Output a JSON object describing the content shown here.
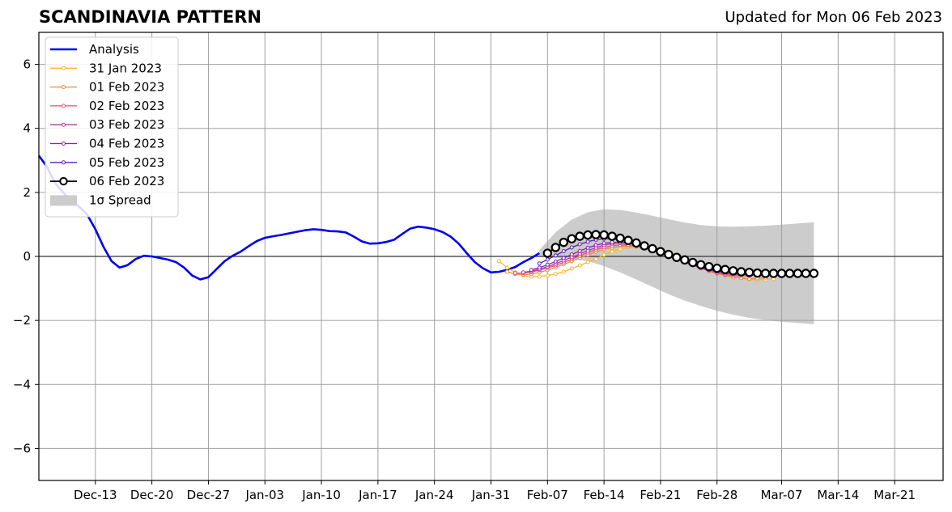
{
  "chart_data": {
    "type": "line",
    "title": "SCANDINAVIA PATTERN",
    "subtitle": "Updated for Mon 06 Feb 2023",
    "xlabel": "",
    "ylabel": "",
    "ylim": [
      -7,
      7
    ],
    "xlim": [
      "2023-12-06",
      "2024-03-27"
    ],
    "x_ticks": [
      {
        "date": "2023-12-13",
        "label": "Dec-13"
      },
      {
        "date": "2023-12-20",
        "label": "Dec-20"
      },
      {
        "date": "2023-12-27",
        "label": "Dec-27"
      },
      {
        "date": "2024-01-03",
        "label": "Jan-03"
      },
      {
        "date": "2024-01-10",
        "label": "Jan-10"
      },
      {
        "date": "2024-01-17",
        "label": "Jan-17"
      },
      {
        "date": "2024-01-24",
        "label": "Jan-24"
      },
      {
        "date": "2024-01-31",
        "label": "Jan-31"
      },
      {
        "date": "2024-02-07",
        "label": "Feb-07"
      },
      {
        "date": "2024-02-14",
        "label": "Feb-14"
      },
      {
        "date": "2024-02-21",
        "label": "Feb-21"
      },
      {
        "date": "2024-02-28",
        "label": "Feb-28"
      },
      {
        "date": "2024-03-07",
        "label": "Mar-07"
      },
      {
        "date": "2024-03-14",
        "label": "Mar-14"
      },
      {
        "date": "2024-03-21",
        "label": "Mar-21"
      }
    ],
    "y_ticks": [
      {
        "value": 6,
        "label": "6"
      },
      {
        "value": 4,
        "label": "4"
      },
      {
        "value": 2,
        "label": "2"
      },
      {
        "value": 0,
        "label": "0"
      },
      {
        "value": -2,
        "label": "−2"
      },
      {
        "value": -4,
        "label": "−4"
      },
      {
        "value": -6,
        "label": "−6"
      }
    ],
    "grid": true,
    "zero_line": true,
    "legend_placement": "top-left",
    "legend": [
      "Analysis",
      "31 Jan 2023",
      "01 Feb 2023",
      "02 Feb 2023",
      "03 Feb 2023",
      "04 Feb 2023",
      "05 Feb 2023",
      "06 Feb 2023",
      "1σ Spread"
    ],
    "series": [
      {
        "name": "Analysis",
        "color": "#0000ee",
        "style": "thick-line",
        "x": [
          "2023-12-06",
          "2023-12-07",
          "2023-12-08",
          "2023-12-09",
          "2023-12-10",
          "2023-12-11",
          "2023-12-12",
          "2023-12-13",
          "2023-12-14",
          "2023-12-15",
          "2023-12-16",
          "2023-12-17",
          "2023-12-18",
          "2023-12-19",
          "2023-12-20",
          "2023-12-21",
          "2023-12-22",
          "2023-12-23",
          "2023-12-24",
          "2023-12-25",
          "2023-12-26",
          "2023-12-27",
          "2023-12-28",
          "2023-12-29",
          "2023-12-30",
          "2023-12-31",
          "2024-01-01",
          "2024-01-02",
          "2024-01-03",
          "2024-01-04",
          "2024-01-05",
          "2024-01-06",
          "2024-01-07",
          "2024-01-08",
          "2024-01-09",
          "2024-01-10",
          "2024-01-11",
          "2024-01-12",
          "2024-01-13",
          "2024-01-14",
          "2024-01-15",
          "2024-01-16",
          "2024-01-17",
          "2024-01-18",
          "2024-01-19",
          "2024-01-20",
          "2024-01-21",
          "2024-01-22",
          "2024-01-23",
          "2024-01-24",
          "2024-01-25",
          "2024-01-26",
          "2024-01-27",
          "2024-01-28",
          "2024-01-29",
          "2024-01-30",
          "2024-01-31",
          "2024-02-01",
          "2024-02-02",
          "2024-02-03",
          "2024-02-04",
          "2024-02-05",
          "2024-02-06"
        ],
        "y": [
          3.15,
          2.8,
          2.3,
          2.0,
          1.75,
          1.55,
          1.3,
          0.85,
          0.3,
          -0.15,
          -0.35,
          -0.27,
          -0.08,
          0.02,
          0.0,
          -0.05,
          -0.1,
          -0.18,
          -0.35,
          -0.6,
          -0.72,
          -0.65,
          -0.4,
          -0.15,
          0.02,
          0.15,
          0.32,
          0.48,
          0.58,
          0.63,
          0.67,
          0.72,
          0.77,
          0.82,
          0.85,
          0.83,
          0.79,
          0.78,
          0.75,
          0.62,
          0.47,
          0.4,
          0.41,
          0.45,
          0.52,
          0.7,
          0.87,
          0.93,
          0.9,
          0.85,
          0.76,
          0.62,
          0.4,
          0.1,
          -0.18,
          -0.37,
          -0.5,
          -0.48,
          -0.42,
          -0.33,
          -0.18,
          -0.05,
          0.1
        ]
      },
      {
        "name": "31 Jan 2023",
        "color": "#f5b731",
        "style": "small-dots",
        "start": "2024-02-01",
        "y": [
          -0.15,
          -0.35,
          -0.5,
          -0.6,
          -0.63,
          -0.63,
          -0.6,
          -0.55,
          -0.48,
          -0.38,
          -0.28,
          -0.18,
          -0.08,
          0.05,
          0.15,
          0.23,
          0.28,
          0.3,
          0.3,
          0.28,
          0.22,
          0.15,
          0.05,
          -0.06,
          -0.17,
          -0.28,
          -0.38,
          -0.48,
          -0.56,
          -0.63,
          -0.68,
          -0.72,
          -0.73,
          -0.72,
          -0.7
        ]
      },
      {
        "name": "01 Feb 2023",
        "color": "#f0893d",
        "style": "small-dots",
        "start": "2024-02-02",
        "y": [
          -0.48,
          -0.55,
          -0.57,
          -0.55,
          -0.5,
          -0.43,
          -0.34,
          -0.25,
          -0.15,
          -0.05,
          0.05,
          0.14,
          0.22,
          0.27,
          0.31,
          0.32,
          0.3,
          0.26,
          0.2,
          0.12,
          0.03,
          -0.07,
          -0.17,
          -0.27,
          -0.37,
          -0.46,
          -0.54,
          -0.6,
          -0.65,
          -0.68,
          -0.7,
          -0.69,
          -0.66
        ]
      },
      {
        "name": "02 Feb 2023",
        "color": "#d9577a",
        "style": "small-dots",
        "start": "2024-02-03",
        "y": [
          -0.52,
          -0.52,
          -0.49,
          -0.43,
          -0.36,
          -0.28,
          -0.19,
          -0.09,
          0.02,
          0.12,
          0.21,
          0.28,
          0.33,
          0.36,
          0.36,
          0.33,
          0.28,
          0.21,
          0.12,
          0.02,
          -0.08,
          -0.18,
          -0.28,
          -0.37,
          -0.45,
          -0.52,
          -0.57,
          -0.6,
          -0.61,
          -0.6,
          -0.57
        ]
      },
      {
        "name": "03 Feb 2023",
        "color": "#b23a9a",
        "style": "small-dots",
        "start": "2024-02-04",
        "y": [
          -0.5,
          -0.46,
          -0.4,
          -0.32,
          -0.23,
          -0.13,
          -0.03,
          0.08,
          0.18,
          0.27,
          0.35,
          0.4,
          0.42,
          0.41,
          0.38,
          0.32,
          0.25,
          0.16,
          0.06,
          -0.04,
          -0.14,
          -0.24,
          -0.33,
          -0.41,
          -0.48,
          -0.53,
          -0.56,
          -0.57,
          -0.56
        ]
      },
      {
        "name": "04 Feb 2023",
        "color": "#8a1fb0",
        "style": "small-dots",
        "start": "2024-02-05",
        "y": [
          -0.42,
          -0.35,
          -0.26,
          -0.16,
          -0.05,
          0.06,
          0.17,
          0.27,
          0.35,
          0.41,
          0.44,
          0.44,
          0.42,
          0.37,
          0.3,
          0.22,
          0.13,
          0.03,
          -0.07,
          -0.17,
          -0.26,
          -0.35,
          -0.42,
          -0.47,
          -0.5,
          -0.51
        ]
      },
      {
        "name": "05 Feb 2023",
        "color": "#5a1fa8",
        "style": "small-dots",
        "start": "2024-02-06",
        "y": [
          -0.22,
          -0.1,
          0.03,
          0.16,
          0.28,
          0.38,
          0.46,
          0.52,
          0.55,
          0.55,
          0.52,
          0.47,
          0.4,
          0.32,
          0.22,
          0.12,
          0.02,
          -0.08,
          -0.18,
          -0.27,
          -0.35,
          -0.41,
          -0.46,
          -0.49,
          -0.51
        ]
      },
      {
        "name": "06 Feb 2023",
        "color": "#000000",
        "style": "large-open-circles",
        "start": "2024-02-07",
        "y": [
          0.1,
          0.28,
          0.44,
          0.55,
          0.63,
          0.67,
          0.68,
          0.67,
          0.63,
          0.57,
          0.5,
          0.42,
          0.33,
          0.24,
          0.15,
          0.06,
          -0.03,
          -0.11,
          -0.19,
          -0.26,
          -0.32,
          -0.37,
          -0.41,
          -0.45,
          -0.48,
          -0.5,
          -0.52,
          -0.53,
          -0.53,
          -0.53,
          -0.53,
          -0.53,
          -0.53,
          -0.53
        ]
      },
      {
        "name": "1σ Spread",
        "color": "#cccccc",
        "style": "band",
        "x": [
          "2024-02-06",
          "2024-02-08",
          "2024-02-10",
          "2024-02-12",
          "2024-02-14",
          "2024-02-16",
          "2024-02-18",
          "2024-02-20",
          "2024-02-22",
          "2024-02-24",
          "2024-02-26",
          "2024-02-28",
          "2024-03-01",
          "2024-03-03",
          "2024-03-05",
          "2024-03-07",
          "2024-03-09",
          "2024-03-11"
        ],
        "upper": [
          0.2,
          0.75,
          1.15,
          1.38,
          1.47,
          1.45,
          1.37,
          1.27,
          1.16,
          1.06,
          0.98,
          0.94,
          0.93,
          0.94,
          0.96,
          0.99,
          1.03,
          1.07
        ],
        "lower": [
          0.0,
          -0.05,
          -0.08,
          -0.15,
          -0.3,
          -0.5,
          -0.72,
          -0.95,
          -1.18,
          -1.38,
          -1.55,
          -1.7,
          -1.82,
          -1.92,
          -1.99,
          -2.04,
          -2.08,
          -2.12
        ]
      }
    ]
  }
}
